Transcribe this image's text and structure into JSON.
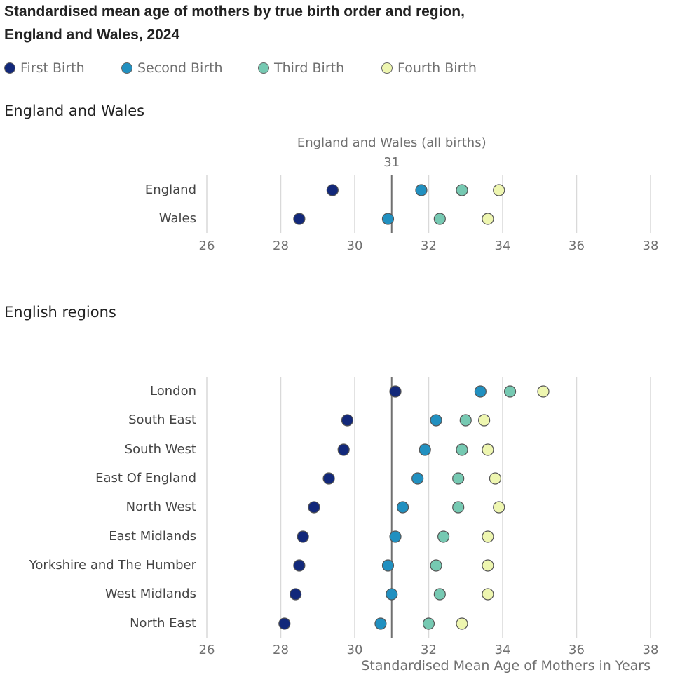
{
  "title_line1": "Standardised mean age of mothers by true birth order and region,",
  "title_line2": "England and Wales, 2024",
  "legend": [
    {
      "label": "First Birth",
      "color": "#12287a"
    },
    {
      "label": "Second Birth",
      "color": "#2190c0"
    },
    {
      "label": "Third Birth",
      "color": "#76c9b2"
    },
    {
      "label": "Fourth Birth",
      "color": "#eef6b0"
    }
  ],
  "sections": {
    "ew_title": "England and Wales",
    "regions_title": "English regions"
  },
  "x_axis_title": "Standardised Mean Age of Mothers in Years",
  "chart_data": [
    {
      "type": "scatter",
      "subtype": "dot-plot",
      "title": "England and Wales",
      "reference_line": {
        "value": 31,
        "label": "England and Wales (all births)",
        "value_label": "31"
      },
      "xlim": [
        26,
        38
      ],
      "xticks": [
        26,
        28,
        30,
        32,
        34,
        36,
        38
      ],
      "grid": true,
      "categories": [
        "England",
        "Wales"
      ],
      "series": [
        {
          "name": "First Birth",
          "values": [
            29.4,
            28.5
          ]
        },
        {
          "name": "Second Birth",
          "values": [
            31.8,
            30.9
          ]
        },
        {
          "name": "Third Birth",
          "values": [
            32.9,
            32.3
          ]
        },
        {
          "name": "Fourth Birth",
          "values": [
            33.9,
            33.6
          ]
        }
      ]
    },
    {
      "type": "scatter",
      "subtype": "dot-plot",
      "title": "English regions",
      "reference_line": {
        "value": 31
      },
      "xlim": [
        26,
        38
      ],
      "xticks": [
        26,
        28,
        30,
        32,
        34,
        36,
        38
      ],
      "grid": true,
      "xlabel": "Standardised Mean Age of Mothers in Years",
      "categories": [
        "London",
        "South East",
        "South West",
        "East Of England",
        "North West",
        "East Midlands",
        "Yorkshire and The Humber",
        "West Midlands",
        "North East"
      ],
      "series": [
        {
          "name": "First Birth",
          "values": [
            31.1,
            29.8,
            29.7,
            29.3,
            28.9,
            28.6,
            28.5,
            28.4,
            28.1
          ]
        },
        {
          "name": "Second Birth",
          "values": [
            33.4,
            32.2,
            31.9,
            31.7,
            31.3,
            31.1,
            30.9,
            31.0,
            30.7
          ]
        },
        {
          "name": "Third Birth",
          "values": [
            34.2,
            33.0,
            32.9,
            32.8,
            32.8,
            32.4,
            32.2,
            32.3,
            32.0
          ]
        },
        {
          "name": "Fourth Birth",
          "values": [
            35.1,
            33.5,
            33.6,
            33.8,
            33.9,
            33.6,
            33.6,
            33.6,
            32.9
          ]
        }
      ]
    }
  ]
}
